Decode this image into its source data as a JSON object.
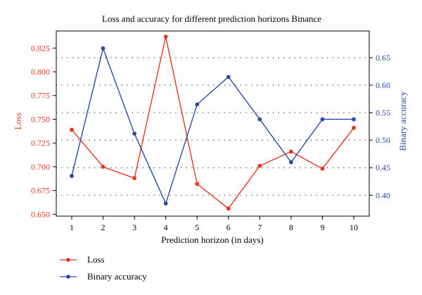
{
  "colors": {
    "loss": "#e8341c",
    "accuracy": "#2b4aa6",
    "grid": "#333333",
    "axis": "#000000"
  },
  "chart_data": {
    "type": "line",
    "title": "Loss and accuracy for different prediction horizons Binance",
    "xlabel": "Prediction horizon (in days)",
    "ylabel_left": "Loss",
    "ylabel_right": "Binary accuracy",
    "x": [
      1,
      2,
      3,
      4,
      5,
      6,
      7,
      8,
      9,
      10
    ],
    "xlim": [
      1,
      10
    ],
    "ylim_left": [
      0.648,
      0.843
    ],
    "ylim_right": [
      0.362,
      0.6985
    ],
    "yticks_left": [
      "0.650",
      "0.675",
      "0.700",
      "0.725",
      "0.750",
      "0.775",
      "0.800",
      "0.825"
    ],
    "yticks_right": [
      "0.40",
      "0.45",
      "0.50",
      "0.55",
      "0.60",
      "0.65"
    ],
    "grid": "horizontal dotted lines at right-axis ticks",
    "legend": "bottom-left",
    "series": [
      {
        "name": "Loss",
        "axis": "left",
        "color": "#e8341c",
        "values": [
          0.739,
          0.7,
          0.688,
          0.837,
          0.682,
          0.656,
          0.701,
          0.716,
          0.698,
          0.741
        ]
      },
      {
        "name": "Binary accuracy",
        "axis": "right",
        "color": "#2b4aa6",
        "values": [
          0.435,
          0.667,
          0.512,
          0.385,
          0.565,
          0.615,
          0.538,
          0.46,
          0.538,
          0.538
        ]
      }
    ]
  }
}
